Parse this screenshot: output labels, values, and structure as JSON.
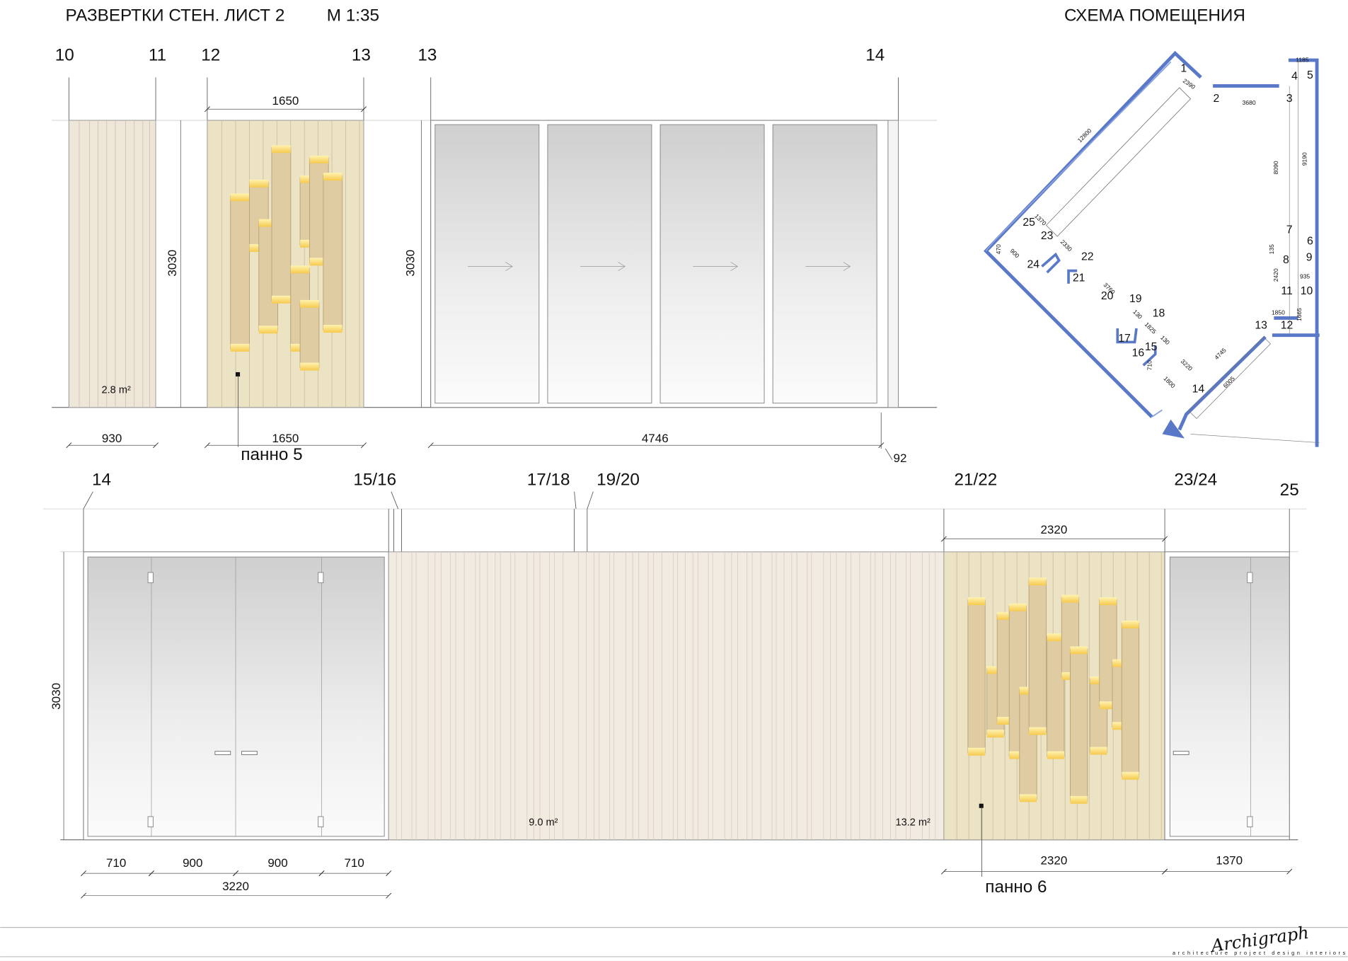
{
  "header": {
    "title": "РАЗВЕРТКИ СТЕН. ЛИСТ 2",
    "scale": "М 1:35",
    "plan_title": "СХЕМА ПОМЕЩЕНИЯ"
  },
  "sheet_top": {
    "axes": [
      "10",
      "11",
      "12",
      "13",
      "13",
      "14"
    ],
    "dimensions": [
      "1650",
      "3030",
      "3030",
      "930",
      "1650",
      "4746",
      "92"
    ],
    "area": "2.8 m²",
    "panel": "панно 5"
  },
  "sheet_bottom": {
    "axes": [
      "14",
      "15/16",
      "17/18",
      "19/20",
      "21/22",
      "23/24",
      "25"
    ],
    "dimensions": [
      "3030",
      "2320",
      "710",
      "900",
      "900",
      "710",
      "3220",
      "2320",
      "1370"
    ],
    "areas": [
      "9.0 m²",
      "13.2 m²"
    ],
    "panel": "панно 6"
  },
  "plan": {
    "points": [
      "1",
      "2",
      "3",
      "4",
      "5",
      "6",
      "7",
      "8",
      "9",
      "10",
      "11",
      "12",
      "13",
      "14",
      "15",
      "16",
      "17",
      "18",
      "19",
      "20",
      "21",
      "22",
      "23",
      "24",
      "25"
    ],
    "dimensions": [
      "1185",
      "2390",
      "3680",
      "8090",
      "9190",
      "12800",
      "1370",
      "2330",
      "3760",
      "935",
      "2420",
      "1850",
      "4745",
      "6005",
      "3220",
      "1800",
      "710",
      "1825",
      "130",
      "130",
      "900",
      "470",
      "135",
      "1665"
    ]
  },
  "footer": {
    "logo": "Archigraph",
    "tagline": "architecture project design interiors"
  }
}
